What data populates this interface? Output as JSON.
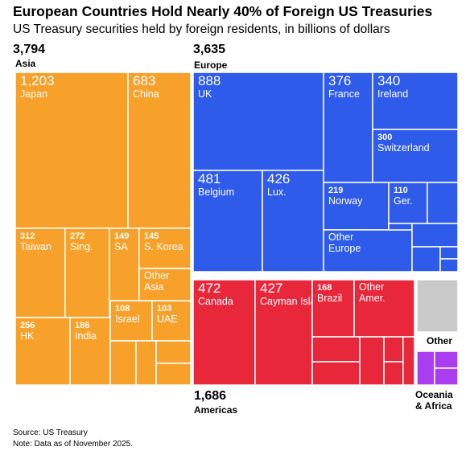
{
  "title": "European Countries Hold Nearly 40% of Foreign US Treasuries",
  "subtitle": "US Treasury securities held by foreign residents, in billions of dollars",
  "source": "Source: US Treasury",
  "note": "Note: Data as of November 2025.",
  "colors": {
    "asia": "#f7a12b",
    "europe": "#2e5bea",
    "americas": "#e8273b",
    "other": "#c9c9c9",
    "oceania_africa": "#a83ef0"
  },
  "chart_data": {
    "type": "treemap",
    "title": "European Countries Hold Nearly 40% of Foreign US Treasuries",
    "subtitle": "US Treasury securities held by foreign residents, in billions of dollars",
    "groups": [
      {
        "key": "asia",
        "name": "Asia",
        "total": "3,794",
        "items": [
          {
            "label": "Japan",
            "value": "1,203"
          },
          {
            "label": "China",
            "value": "683"
          },
          {
            "label": "Taiwan",
            "value": "312"
          },
          {
            "label": "Sing.",
            "value": "272"
          },
          {
            "label": "SA",
            "value": "149"
          },
          {
            "label": "S. Korea",
            "value": "145"
          },
          {
            "label": "Other Asia",
            "value": ""
          },
          {
            "label": "HK",
            "value": "256"
          },
          {
            "label": "India",
            "value": "186"
          },
          {
            "label": "Israel",
            "value": "108"
          },
          {
            "label": "UAE",
            "value": "103"
          }
        ]
      },
      {
        "key": "europe",
        "name": "Europe",
        "total": "3,635",
        "items": [
          {
            "label": "UK",
            "value": "888"
          },
          {
            "label": "France",
            "value": "376"
          },
          {
            "label": "Ireland",
            "value": "340"
          },
          {
            "label": "Switzerland",
            "value": "300"
          },
          {
            "label": "Belgium",
            "value": "481"
          },
          {
            "label": "Lux.",
            "value": "426"
          },
          {
            "label": "Norway",
            "value": "219"
          },
          {
            "label": "Ger.",
            "value": "110"
          },
          {
            "label": "Other Europe",
            "value": ""
          }
        ]
      },
      {
        "key": "americas",
        "name": "Americas",
        "total": "1,686",
        "items": [
          {
            "label": "Canada",
            "value": "472"
          },
          {
            "label": "Cayman Islands",
            "value": "427"
          },
          {
            "label": "Brazil",
            "value": "168"
          },
          {
            "label": "Other Amer.",
            "value": ""
          }
        ]
      },
      {
        "key": "other",
        "name": "Other",
        "total": "",
        "items": []
      },
      {
        "key": "oceania_africa",
        "name": "Oceania & Africa",
        "total": "",
        "items": []
      }
    ]
  }
}
